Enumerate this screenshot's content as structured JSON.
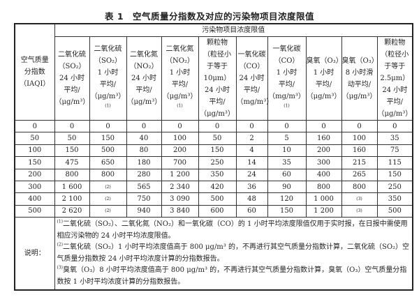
{
  "title": "表 1　空气质量分指数及对应的污染物项目浓度限值",
  "header": {
    "iaqi": [
      "空气质量",
      "分指数",
      "（IAQI）"
    ],
    "group": "污染物项目浓度限值",
    "columns": [
      {
        "lines": [
          "二氧化硫",
          "（SO₂）",
          "24 小时",
          "平均/",
          "（μg/m³）"
        ],
        "note": ""
      },
      {
        "lines": [
          "二氧化硫",
          "（SO₂）",
          "1 小时",
          "平均/",
          "（μg/m³）"
        ],
        "note": "(1)"
      },
      {
        "lines": [
          "二氧化氮",
          "（NO₂）",
          "24 小时",
          "平均/",
          "（μg/m³）"
        ],
        "note": ""
      },
      {
        "lines": [
          "二氧化氮",
          "（NO₂）",
          "1 小时",
          "平均/",
          "（μg/m³）"
        ],
        "note": "(1)"
      },
      {
        "lines": [
          "颗粒物",
          "（粒径小",
          "于等于",
          "10μm）",
          "24 小时",
          "平均/",
          "（μg/m³）"
        ],
        "note": ""
      },
      {
        "lines": [
          "一氧化碳",
          "（CO）",
          "24 小时",
          "平均/",
          "（mg/m³）"
        ],
        "note": ""
      },
      {
        "lines": [
          "一氧化碳",
          "（CO）",
          "1 小时",
          "平均/",
          "（mg/m³）"
        ],
        "note": "(1)"
      },
      {
        "lines": [
          "臭氧（O₃）",
          "1 小时",
          "平均/",
          "（μg/m³）"
        ],
        "note": ""
      },
      {
        "lines": [
          "臭氧（O₃）",
          "8 小时滑",
          "动平均/",
          "（μg/m³）"
        ],
        "note": ""
      },
      {
        "lines": [
          "颗粒物",
          "（粒径小",
          "于等于",
          "2.5μm）",
          "24 小时",
          "平均/",
          "（μg/m³）"
        ],
        "note": ""
      }
    ]
  },
  "rows": [
    [
      "0",
      "0",
      "0",
      "0",
      "0",
      "0",
      "0",
      "0",
      "0",
      "0",
      "0"
    ],
    [
      "50",
      "50",
      "150",
      "40",
      "100",
      "50",
      "2",
      "5",
      "160",
      "100",
      "35"
    ],
    [
      "100",
      "150",
      "500",
      "80",
      "200",
      "150",
      "4",
      "10",
      "200",
      "160",
      "75"
    ],
    [
      "150",
      "475",
      "650",
      "180",
      "700",
      "250",
      "14",
      "35",
      "300",
      "215",
      "115"
    ],
    [
      "200",
      "800",
      "800",
      "280",
      "1 200",
      "350",
      "24",
      "60",
      "400",
      "265",
      "150"
    ],
    [
      "300",
      "1 600",
      "(2)",
      "565",
      "2 340",
      "420",
      "36",
      "90",
      "800",
      "800",
      "250"
    ],
    [
      "400",
      "2 100",
      "(2)",
      "750",
      "3 090",
      "500",
      "48",
      "120",
      "1 000",
      "(3)",
      "350"
    ],
    [
      "500",
      "2 620",
      "(2)",
      "940",
      "3 840",
      "600",
      "60",
      "150",
      "1 200",
      "(3)",
      "500"
    ]
  ],
  "notes": {
    "label": "说明：",
    "items": [
      {
        "mark": "(1)",
        "text": "二氧化硫（SO₂）、二氧化氮（NO₂）和一氧化碳（CO）的 1 小时平均浓度限值仅用于实时报，在日报中需使用相应污染物的 24 小时平均浓度限值。"
      },
      {
        "mark": "(2)",
        "text": "二氧化硫（SO₂）1 小时平均浓度值高于 800 μg/m³ 的，不再进行其空气质量分指数计算，二氧化硫（SO₂）空气质量分指数按 24 小时平均浓度计算的分指数报告。"
      },
      {
        "mark": "(3)",
        "text": "臭氧（O₃）8 小时平均浓度值高于 800 μg/m³ 的，不再进行其空气质量分指数计算，臭氧（O₃）空气质量分指数按 1 小时平均浓度计算的分指数报告。"
      }
    ]
  }
}
